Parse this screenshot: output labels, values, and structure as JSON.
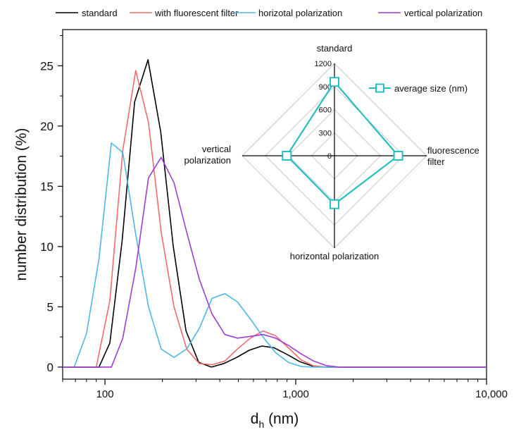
{
  "chart_data": [
    {
      "type": "line",
      "xscale": "log",
      "xlim": [
        60,
        10000
      ],
      "ylim": [
        -1,
        28
      ],
      "xlabel_main": "d",
      "xlabel_sub": "h",
      "xlabel_rest": " (nm)",
      "ylabel": "number distribution (%)",
      "xticks": [
        100,
        1000,
        10000
      ],
      "xtick_labels": [
        "100",
        "1,000",
        "10,000"
      ],
      "yticks": [
        0,
        5,
        10,
        15,
        20,
        25
      ],
      "ytick_labels": [
        "0",
        "5",
        "10",
        "15",
        "20",
        "25"
      ],
      "legend": "top",
      "series": [
        {
          "name": "standard",
          "color": "#000000",
          "points": [
            [
              60,
              0
            ],
            [
              93,
              0
            ],
            [
              106,
              2
            ],
            [
              123,
              10.5
            ],
            [
              143,
              22
            ],
            [
              168,
              25.5
            ],
            [
              196,
              19.5
            ],
            [
              228,
              10
            ],
            [
              266,
              3
            ],
            [
              310,
              0.4
            ],
            [
              361,
              0
            ],
            [
              420,
              0.3
            ],
            [
              490,
              0.8
            ],
            [
              570,
              1.4
            ],
            [
              665,
              1.75
            ],
            [
              770,
              1.6
            ],
            [
              900,
              1.05
            ],
            [
              1050,
              0.45
            ],
            [
              1220,
              0.1
            ],
            [
              1420,
              0
            ],
            [
              10000,
              0
            ]
          ]
        },
        {
          "name": "with fluorescent filter",
          "color": "#F26B6B",
          "points": [
            [
              60,
              0
            ],
            [
              90,
              0
            ],
            [
              106,
              5.5
            ],
            [
              124,
              18
            ],
            [
              145,
              24.6
            ],
            [
              169,
              20.3
            ],
            [
              197,
              11.2
            ],
            [
              230,
              5
            ],
            [
              268,
              1.5
            ],
            [
              312,
              0.3
            ],
            [
              364,
              0.2
            ],
            [
              425,
              0.5
            ],
            [
              495,
              1.5
            ],
            [
              578,
              2.4
            ],
            [
              673,
              3
            ],
            [
              784,
              2.6
            ],
            [
              914,
              1.6
            ],
            [
              1065,
              0.6
            ],
            [
              1240,
              0.1
            ],
            [
              1445,
              0
            ],
            [
              10000,
              0
            ]
          ]
        },
        {
          "name": "horizotal polarization",
          "color": "#4DB8E8",
          "points": [
            [
              60,
              0
            ],
            [
              69,
              0
            ],
            [
              80,
              2.8
            ],
            [
              93,
              9
            ],
            [
              108,
              18.6
            ],
            [
              124,
              17.8
            ],
            [
              145,
              11
            ],
            [
              169,
              5
            ],
            [
              197,
              1.5
            ],
            [
              230,
              0.8
            ],
            [
              268,
              1.5
            ],
            [
              312,
              3.2
            ],
            [
              364,
              5.7
            ],
            [
              425,
              6.1
            ],
            [
              495,
              5.4
            ],
            [
              578,
              4
            ],
            [
              673,
              2.5
            ],
            [
              784,
              1.2
            ],
            [
              914,
              0.4
            ],
            [
              1065,
              0.05
            ],
            [
              1240,
              0
            ],
            [
              10000,
              0
            ]
          ]
        },
        {
          "name": "vertical polarization",
          "color": "#9B3FD1",
          "points": [
            [
              60,
              0
            ],
            [
              108,
              0
            ],
            [
              124,
              2.4
            ],
            [
              145,
              8.2
            ],
            [
              169,
              15.7
            ],
            [
              197,
              17.4
            ],
            [
              230,
              15.3
            ],
            [
              268,
              11.2
            ],
            [
              312,
              7.3
            ],
            [
              364,
              4.4
            ],
            [
              425,
              2.7
            ],
            [
              495,
              2.4
            ],
            [
              578,
              2.55
            ],
            [
              673,
              2.7
            ],
            [
              784,
              2.4
            ],
            [
              914,
              1.8
            ],
            [
              1065,
              1.1
            ],
            [
              1240,
              0.5
            ],
            [
              1445,
              0.12
            ],
            [
              1690,
              0
            ],
            [
              10000,
              0
            ]
          ]
        }
      ]
    },
    {
      "type": "radar",
      "title": "average size (nm)",
      "color": "#26BFBF",
      "rmax": 1200,
      "ticks": [
        0,
        300,
        600,
        900,
        1200
      ],
      "axes": [
        {
          "lines": [
            "standard"
          ],
          "value": 960
        },
        {
          "lines": [
            "fluorescence",
            "filter"
          ],
          "value": 830
        },
        {
          "lines": [
            "horizontal polarization"
          ],
          "value": 630
        },
        {
          "lines": [
            "vertical",
            "polarization"
          ],
          "value": 620
        }
      ]
    }
  ]
}
